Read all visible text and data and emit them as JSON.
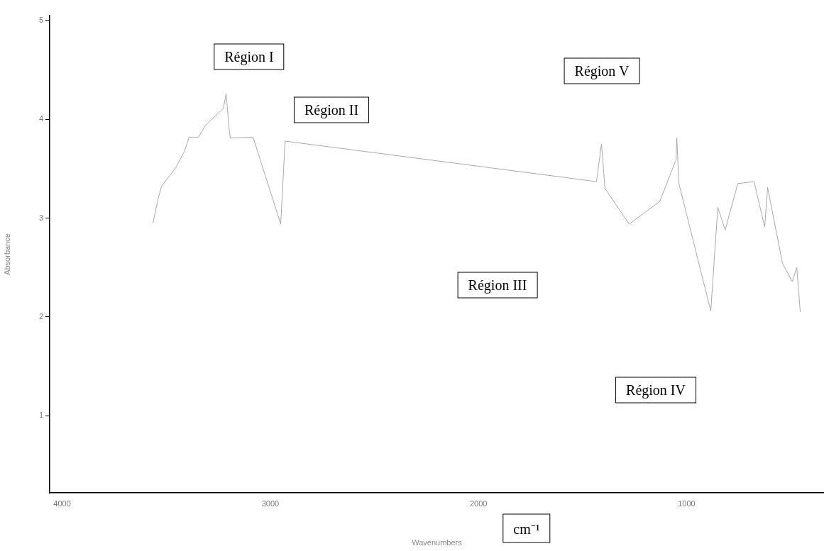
{
  "chart_data": {
    "type": "line",
    "xlabel": "Wavenumbers",
    "ylabel": "Absorbance",
    "x": [
      3564,
      3540,
      3523,
      3499,
      3454,
      3414,
      3390,
      3345,
      3311,
      3226,
      3212,
      3199,
      3192,
      3083,
      2950,
      2929,
      1433,
      1409,
      1392,
      1276,
      1129,
      1051,
      1047,
      1037,
      884,
      850,
      815,
      754,
      676,
      625,
      611,
      539,
      492,
      471,
      454
    ],
    "series": [
      {
        "color": "#a8a8a8",
        "values": [
          2.95,
          3.19,
          3.32,
          3.39,
          3.51,
          3.67,
          3.82,
          3.82,
          3.94,
          4.11,
          4.26,
          3.92,
          3.81,
          3.82,
          2.94,
          3.78,
          3.37,
          3.75,
          3.3,
          2.94,
          3.17,
          3.59,
          3.81,
          3.35,
          2.06,
          3.11,
          2.88,
          3.35,
          3.37,
          2.91,
          3.31,
          2.54,
          2.36,
          2.5,
          2.05
        ]
      }
    ],
    "xlim": [
      4060,
      340
    ],
    "xticks": [
      4000,
      3000,
      2000,
      1000
    ],
    "ylim": [
      0.22,
      5.05
    ],
    "yticks": [
      1,
      2,
      3,
      4,
      5
    ],
    "marker": "none",
    "line_style": "solid",
    "annotations": [
      "Région I",
      "Région II",
      "Région III",
      "Région IV",
      "Région V",
      "cm⁻¹"
    ]
  }
}
